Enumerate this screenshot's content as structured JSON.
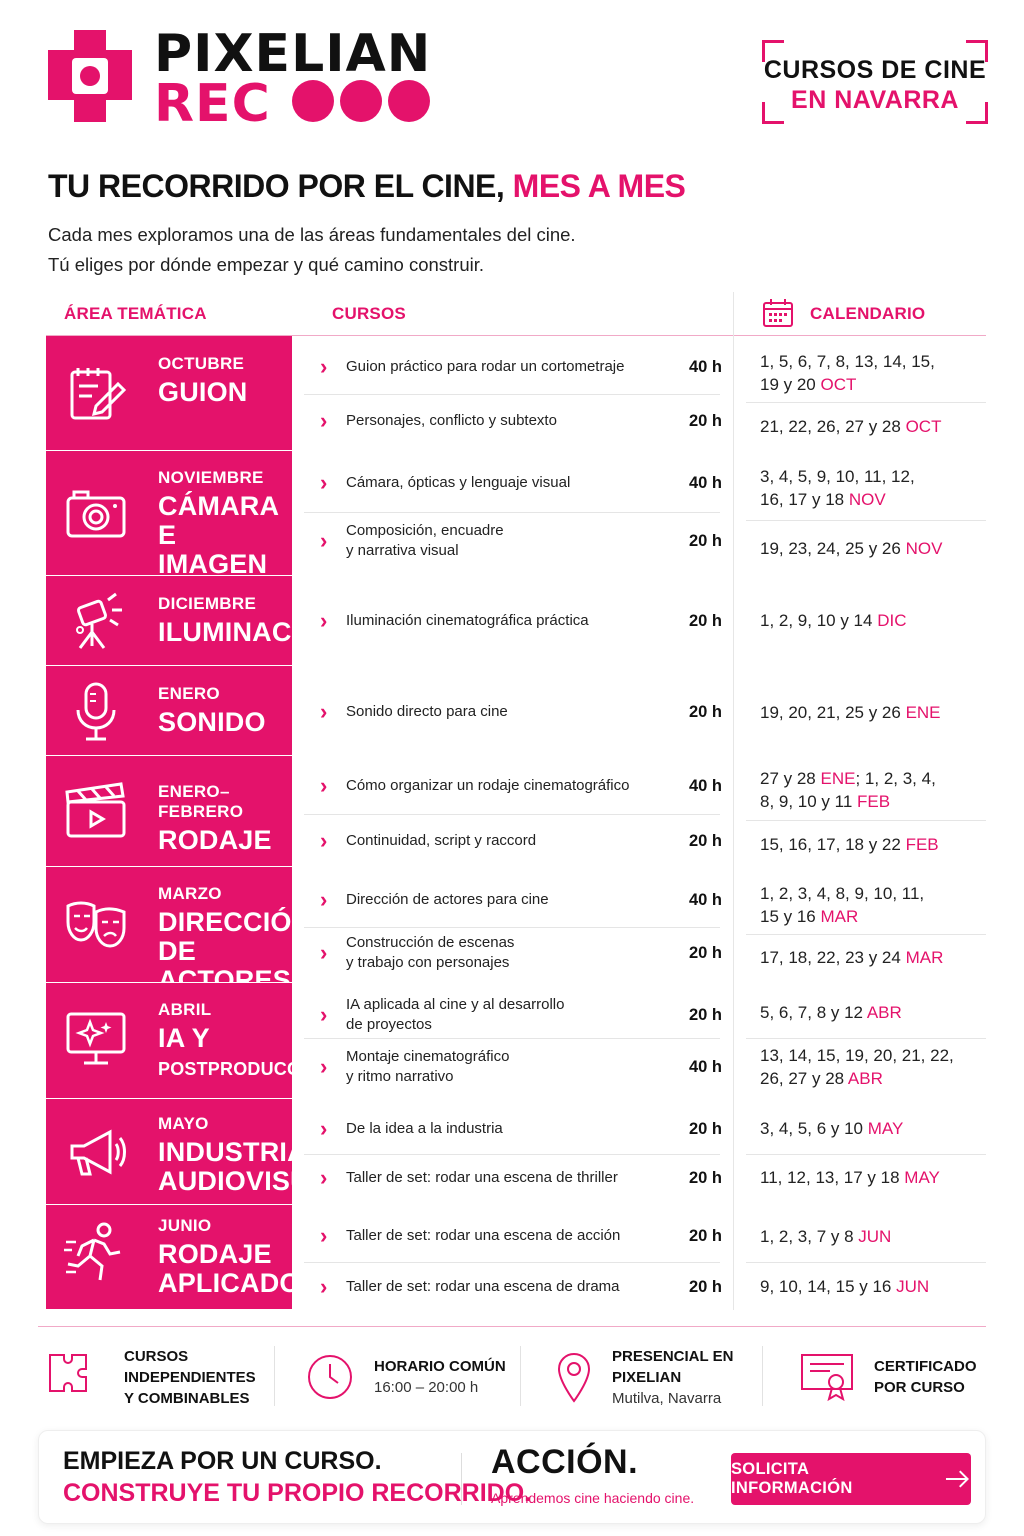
{
  "brand": {
    "line1": "PIXELIAN",
    "line2": "REC"
  },
  "badge": {
    "line1": "CURSOS DE CINE",
    "line2": "EN NAVARRA"
  },
  "headline": {
    "main": "TU RECORRIDO POR EL CINE, ",
    "highlight": "MES A MES"
  },
  "intro": {
    "line1": "Cada mes exploramos una de las áreas fundamentales del cine.",
    "line2": "Tú eliges por dónde empezar y qué camino construir."
  },
  "table_headers": {
    "area": "ÁREA TEMÁTICA",
    "courses": "CURSOS",
    "calendar": "CALENDARIO"
  },
  "colors": {
    "accent": "#e4126b",
    "text": "#1a1a1a",
    "divider": "#e5e5e5"
  },
  "areas": [
    {
      "month": "OCTUBRE",
      "topic": [
        "GUION"
      ],
      "icon": "script-icon",
      "courses": [
        {
          "title": [
            "Guion práctico para rodar un cortometraje"
          ],
          "hours": "40 h"
        },
        {
          "title": [
            "Personajes, conflicto y subtexto"
          ],
          "hours": "20 h"
        }
      ],
      "dates": [
        {
          "lines": [
            "1, 5, 6, 7, 8, 13, 14, 15,",
            "19 y 20 "
          ],
          "month": "OCT"
        },
        {
          "lines": [
            "21, 22, 26, 27 y 28 "
          ],
          "month": "OCT"
        }
      ]
    },
    {
      "month": "NOVIEMBRE",
      "topic": [
        "CÁMARA",
        "E IMAGEN"
      ],
      "icon": "camera-icon",
      "courses": [
        {
          "title": [
            "Cámara, ópticas y lenguaje visual"
          ],
          "hours": "40 h"
        },
        {
          "title": [
            "Composición, encuadre",
            "y narrativa visual"
          ],
          "hours": "20 h"
        }
      ],
      "dates": [
        {
          "lines": [
            "3, 4, 5, 9, 10, 11, 12,",
            "16, 17 y 18 "
          ],
          "month": "NOV"
        },
        {
          "lines": [
            "19, 23, 24, 25 y 26 "
          ],
          "month": "NOV"
        }
      ]
    },
    {
      "month": "DICIEMBRE",
      "topic": [
        "ILUMINACIÓN"
      ],
      "icon": "light-icon",
      "courses": [
        {
          "title": [
            "Iluminación cinematográfica práctica"
          ],
          "hours": "20 h"
        }
      ],
      "dates": [
        {
          "lines": [
            "1, 2, 9, 10 y 14 "
          ],
          "month": "DIC"
        }
      ]
    },
    {
      "month": "ENERO",
      "topic": [
        "SONIDO"
      ],
      "icon": "microphone-icon",
      "courses": [
        {
          "title": [
            "Sonido directo para cine"
          ],
          "hours": "20 h"
        }
      ],
      "dates": [
        {
          "lines": [
            "19, 20, 21, 25 y 26 "
          ],
          "month": "ENE"
        }
      ]
    },
    {
      "month": "ENERO–FEBRERO",
      "topic": [
        "RODAJE"
      ],
      "icon": "clapperboard-icon",
      "courses": [
        {
          "title": [
            "Cómo organizar un rodaje cinematográfico"
          ],
          "hours": "40 h"
        },
        {
          "title": [
            "Continuidad, script y raccord"
          ],
          "hours": "20 h"
        }
      ],
      "dates": [
        {
          "lines": [
            "27 y 28 ",
            "8, 9, 10 y 11 "
          ],
          "month": "FEB",
          "extra": {
            "m1": "ENE",
            "after": "; 1, 2, 3, 4,"
          }
        },
        {
          "lines": [
            "15, 16, 17, 18 y 22 "
          ],
          "month": "FEB"
        }
      ]
    },
    {
      "month": "MARZO",
      "topic": [
        "DIRECCIÓN DE",
        "ACTORES"
      ],
      "icon": "theater-masks-icon",
      "courses": [
        {
          "title": [
            "Dirección de actores para cine"
          ],
          "hours": "40 h"
        },
        {
          "title": [
            "Construcción de escenas",
            "y trabajo con personajes"
          ],
          "hours": "20 h"
        }
      ],
      "dates": [
        {
          "lines": [
            "1, 2, 3, 4, 8, 9, 10, 11,",
            "15 y 16 "
          ],
          "month": "MAR"
        },
        {
          "lines": [
            "17, 18, 22, 23 y 24 "
          ],
          "month": "MAR"
        }
      ]
    },
    {
      "month": "ABRIL",
      "topic": [
        "IA Y"
      ],
      "topic_small": "POSTPRODUCCIÓN",
      "icon": "monitor-sparkle-icon",
      "courses": [
        {
          "title": [
            "IA aplicada al cine y al desarrollo",
            "de proyectos"
          ],
          "hours": "20 h"
        },
        {
          "title": [
            "Montaje cinematográfico",
            "y ritmo narrativo"
          ],
          "hours": "40 h"
        }
      ],
      "dates": [
        {
          "lines": [
            "5, 6, 7, 8 y 12 "
          ],
          "month": "ABR"
        },
        {
          "lines": [
            "13, 14, 15, 19, 20, 21, 22,",
            "26, 27 y 28 "
          ],
          "month": "ABR"
        }
      ]
    },
    {
      "month": "MAYO",
      "topic": [
        "INDUSTRIA",
        "AUDIOVISUAL"
      ],
      "icon": "megaphone-icon",
      "courses": [
        {
          "title": [
            "De la idea a la industria"
          ],
          "hours": "20 h"
        },
        {
          "title": [
            "Taller de set: rodar una escena de thriller"
          ],
          "hours": "20 h"
        }
      ],
      "dates": [
        {
          "lines": [
            "3, 4, 5, 6 y 10 "
          ],
          "month": "MAY"
        },
        {
          "lines": [
            "11, 12, 13, 17 y 18 "
          ],
          "month": "MAY"
        }
      ]
    },
    {
      "month": "JUNIO",
      "topic": [
        "RODAJE",
        "APLICADO"
      ],
      "icon": "running-person-icon",
      "courses": [
        {
          "title": [
            "Taller de set: rodar una escena de acción"
          ],
          "hours": "20 h"
        },
        {
          "title": [
            "Taller de set: rodar una escena de drama"
          ],
          "hours": "20 h"
        }
      ],
      "dates": [
        {
          "lines": [
            "1, 2, 3, 7 y 8 "
          ],
          "month": "JUN"
        },
        {
          "lines": [
            "9, 10, 14, 15 y 16 "
          ],
          "month": "JUN"
        }
      ]
    }
  ],
  "features": [
    {
      "icon": "puzzle-icon",
      "title": [
        "CURSOS",
        "INDEPENDIENTES",
        "Y COMBINABLES"
      ],
      "sub": []
    },
    {
      "icon": "clock-icon",
      "title": [
        "HORARIO COMÚN"
      ],
      "sub": [
        "16:00 – 20:00 h"
      ]
    },
    {
      "icon": "location-pin-icon",
      "title": [
        "PRESENCIAL EN",
        "PIXELIAN"
      ],
      "sub": [
        "Mutilva, Navarra"
      ]
    },
    {
      "icon": "certificate-icon",
      "title": [
        "CERTIFICADO",
        "POR CURSO"
      ],
      "sub": []
    }
  ],
  "footer": {
    "line1": "EMPIEZA POR UN CURSO.",
    "line2": "CONSTRUYE TU PROPIO RECORRIDO.",
    "action": "ACCIÓN.",
    "action_sub": "Aprendemos cine haciendo cine.",
    "cta": "SOLICITA INFORMACIÓN"
  }
}
